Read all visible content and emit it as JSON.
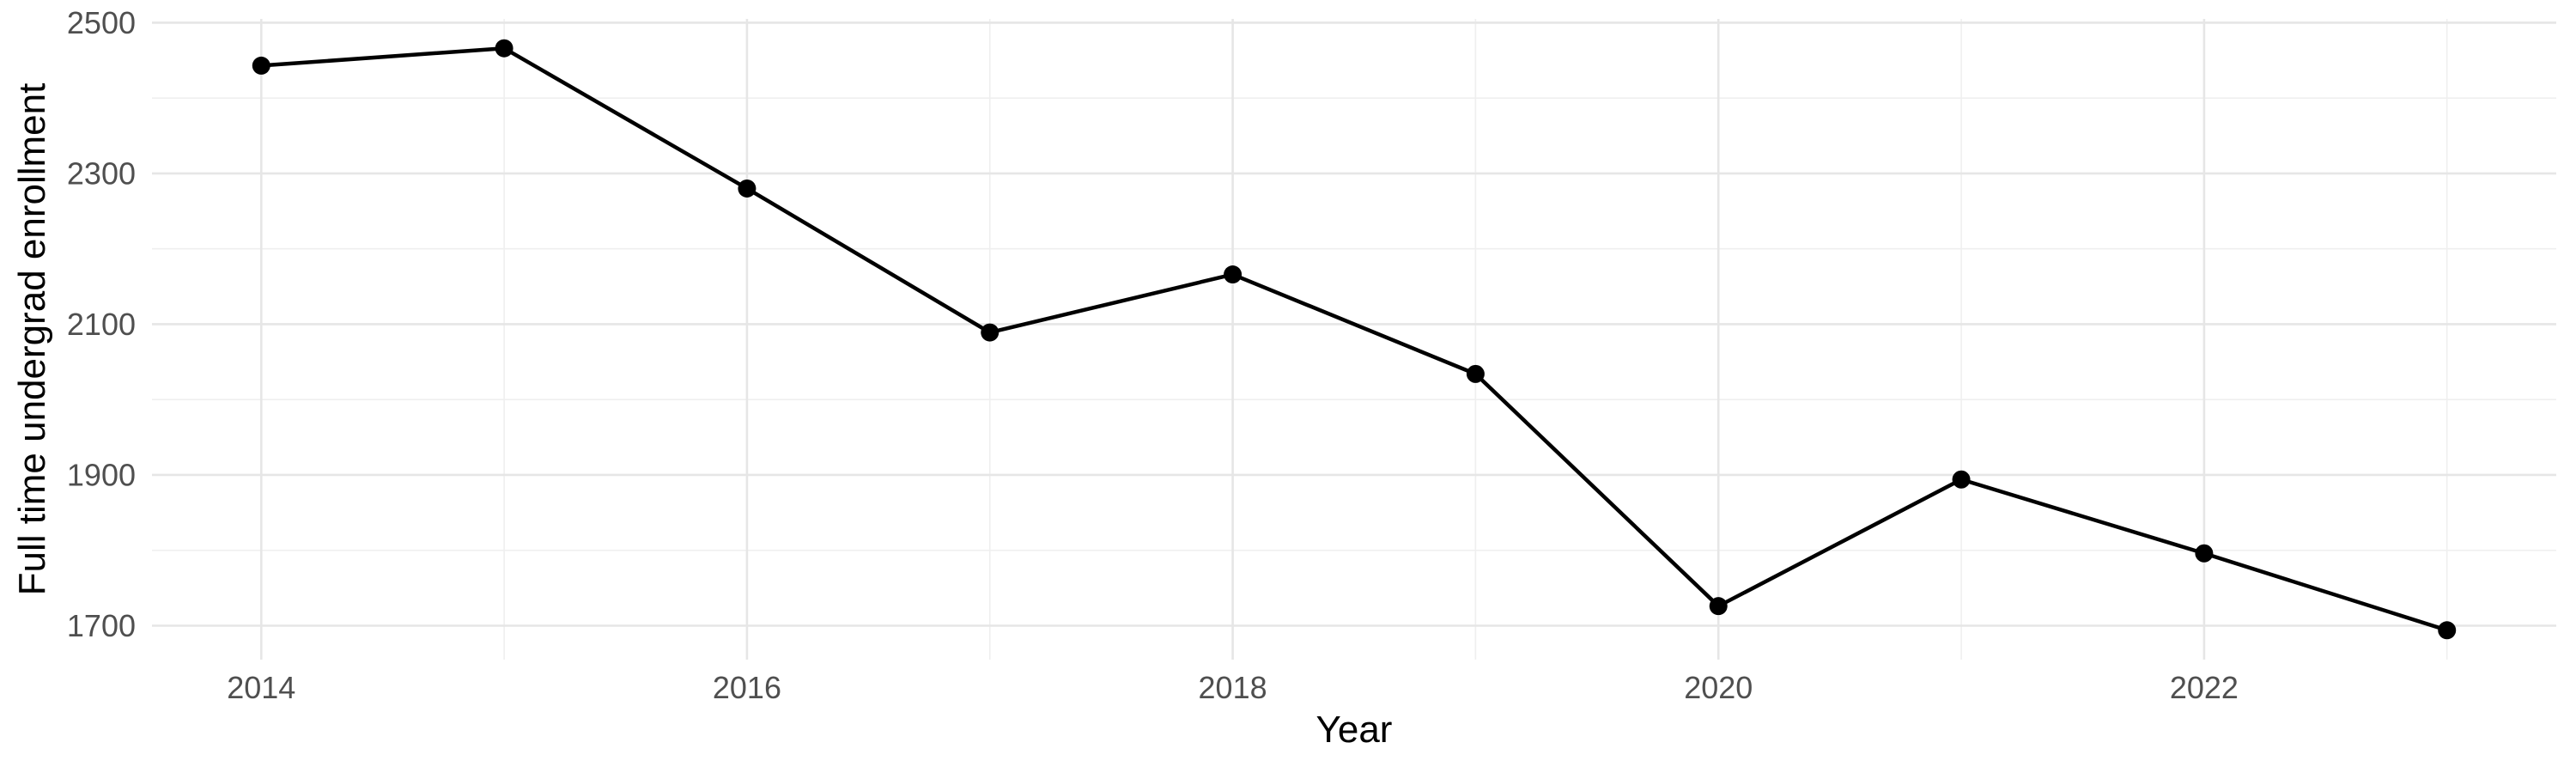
{
  "chart_data": {
    "type": "line",
    "title": "",
    "xlabel": "Year",
    "ylabel": "Full time undergrad enrollment",
    "x": [
      2014,
      2015,
      2016,
      2017,
      2018,
      2019,
      2020,
      2021,
      2022,
      2023
    ],
    "series": [
      {
        "name": "Full time undergrad enrollment",
        "values": [
          2443,
          2466,
          2280,
          2089,
          2166,
          2034,
          1726,
          1894,
          1796,
          1694
        ]
      }
    ],
    "xticks": [
      2014,
      2016,
      2018,
      2020,
      2022
    ],
    "yticks": [
      1700,
      1900,
      2100,
      2300,
      2500
    ],
    "xlim": [
      2013.55,
      2023.45
    ],
    "ylim": [
      1655,
      2505
    ],
    "grid": "major+minor",
    "legend_position": "none",
    "marker": "point",
    "colors": {
      "line": "#000000",
      "point": "#000000",
      "grid_major": "#e6e6e6",
      "grid_minor": "#efefef",
      "tick_label": "#4f4f4f",
      "axis_title": "#000000",
      "background": "#ffffff"
    }
  }
}
